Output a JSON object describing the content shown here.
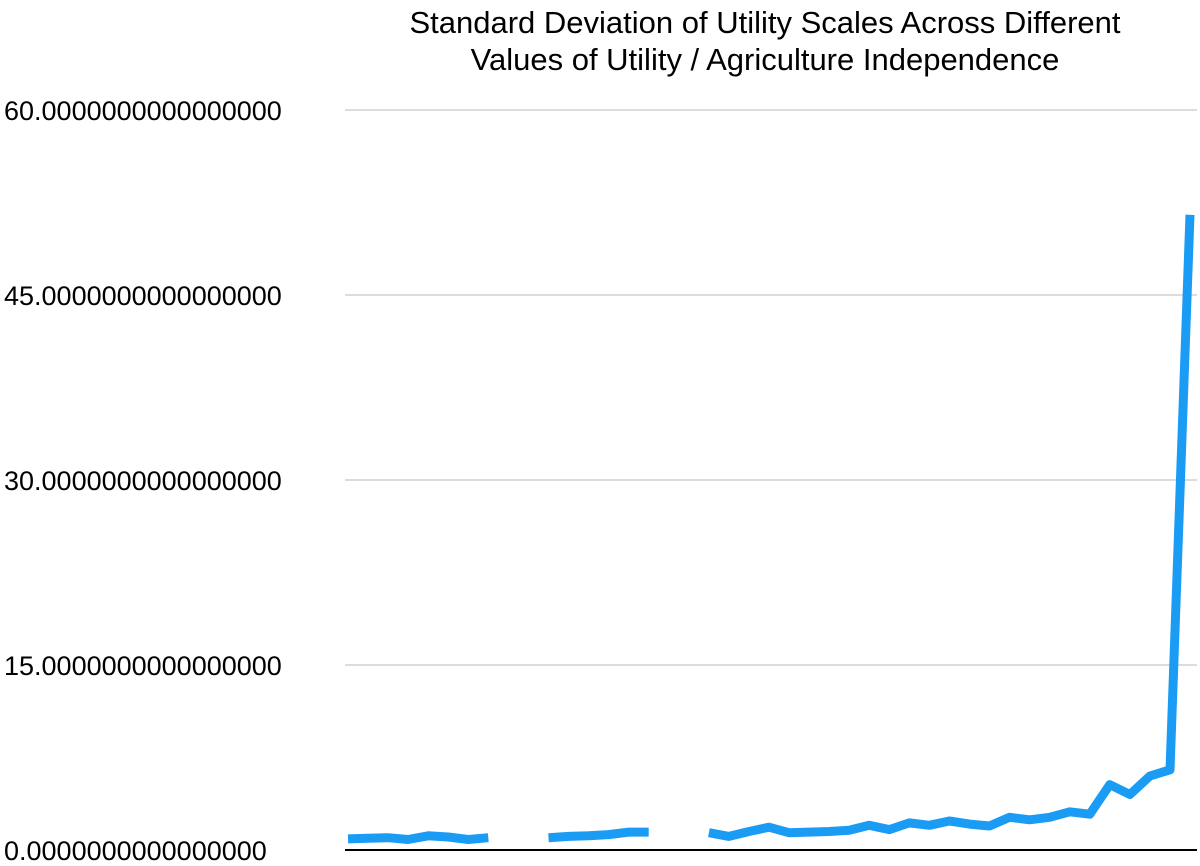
{
  "chart_data": {
    "type": "line",
    "title": "Standard Deviation of Utility Scales Across Different Values of Utility / Agriculture Independence",
    "title_lines": [
      "Standard Deviation of Utility Scales Across Different",
      "Values of Utility / Agriculture Independence"
    ],
    "xlabel": "",
    "ylabel": "",
    "ylim": [
      0,
      60
    ],
    "y_ticks": [
      {
        "value": 0,
        "label": "0.0000000000000000"
      },
      {
        "value": 15,
        "label": "15.0000000000000000"
      },
      {
        "value": 30,
        "label": "30.0000000000000000"
      },
      {
        "value": 45,
        "label": "45.0000000000000000"
      },
      {
        "value": 60,
        "label": "60.0000000000000000"
      }
    ],
    "grid": true,
    "legend": "none",
    "series": [
      {
        "color": "#1a9cf5",
        "values": [
          0.9,
          0.95,
          1.0,
          0.85,
          1.15,
          1.05,
          0.85,
          1.0,
          null,
          null,
          1.0,
          1.1,
          1.15,
          1.25,
          1.45,
          1.45,
          null,
          null,
          1.4,
          1.1,
          1.5,
          1.85,
          1.4,
          1.45,
          1.5,
          1.6,
          2.0,
          1.65,
          2.2,
          2.0,
          2.35,
          2.1,
          1.95,
          2.65,
          2.45,
          2.65,
          3.1,
          2.9,
          5.3,
          4.5,
          6.0,
          6.5,
          51.5
        ]
      }
    ]
  }
}
